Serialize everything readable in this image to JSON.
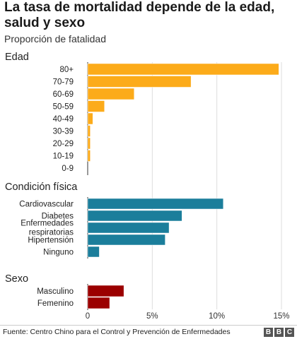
{
  "title": "La tasa de mortalidad depende de la edad, salud y sexo",
  "subtitle": "Proporción de fatalidad",
  "source": "Fuente: Centro Chino para el Control y Prevención de Enfermedades",
  "logo_letters": [
    "B",
    "B",
    "C"
  ],
  "chart_data": [
    {
      "type": "bar",
      "orientation": "horizontal",
      "title": "Edad",
      "color": "#fcab1a",
      "categories": [
        "80+",
        "70-79",
        "60-69",
        "50-59",
        "40-49",
        "30-39",
        "20-29",
        "10-19",
        "0-9"
      ],
      "values": [
        14.8,
        8.0,
        3.6,
        1.3,
        0.4,
        0.2,
        0.2,
        0.2,
        0.0
      ],
      "xlim": [
        0,
        15
      ]
    },
    {
      "type": "bar",
      "orientation": "horizontal",
      "title": "Condición física",
      "color": "#1b7e9b",
      "categories": [
        "Cardiovascular",
        "Diabetes",
        "Enfermedades respiratorias",
        "Hipertensión",
        "Ninguno"
      ],
      "category_lines": [
        [
          "Cardiovascular"
        ],
        [
          "Diabetes"
        ],
        [
          "Enfermedades",
          "respiratorias"
        ],
        [
          "Hipertensión"
        ],
        [
          "Ninguno"
        ]
      ],
      "values": [
        10.5,
        7.3,
        6.3,
        6.0,
        0.9
      ],
      "xlim": [
        0,
        15
      ]
    },
    {
      "type": "bar",
      "orientation": "horizontal",
      "title": "Sexo",
      "color": "#9b0000",
      "categories": [
        "Masculino",
        "Femenino"
      ],
      "values": [
        2.8,
        1.7
      ],
      "xlim": [
        0,
        15
      ]
    }
  ],
  "x_axis": {
    "ticks": [
      0,
      5,
      10,
      15
    ],
    "tick_labels": [
      "0",
      "5%",
      "10%",
      "15%"
    ],
    "grid": true
  }
}
